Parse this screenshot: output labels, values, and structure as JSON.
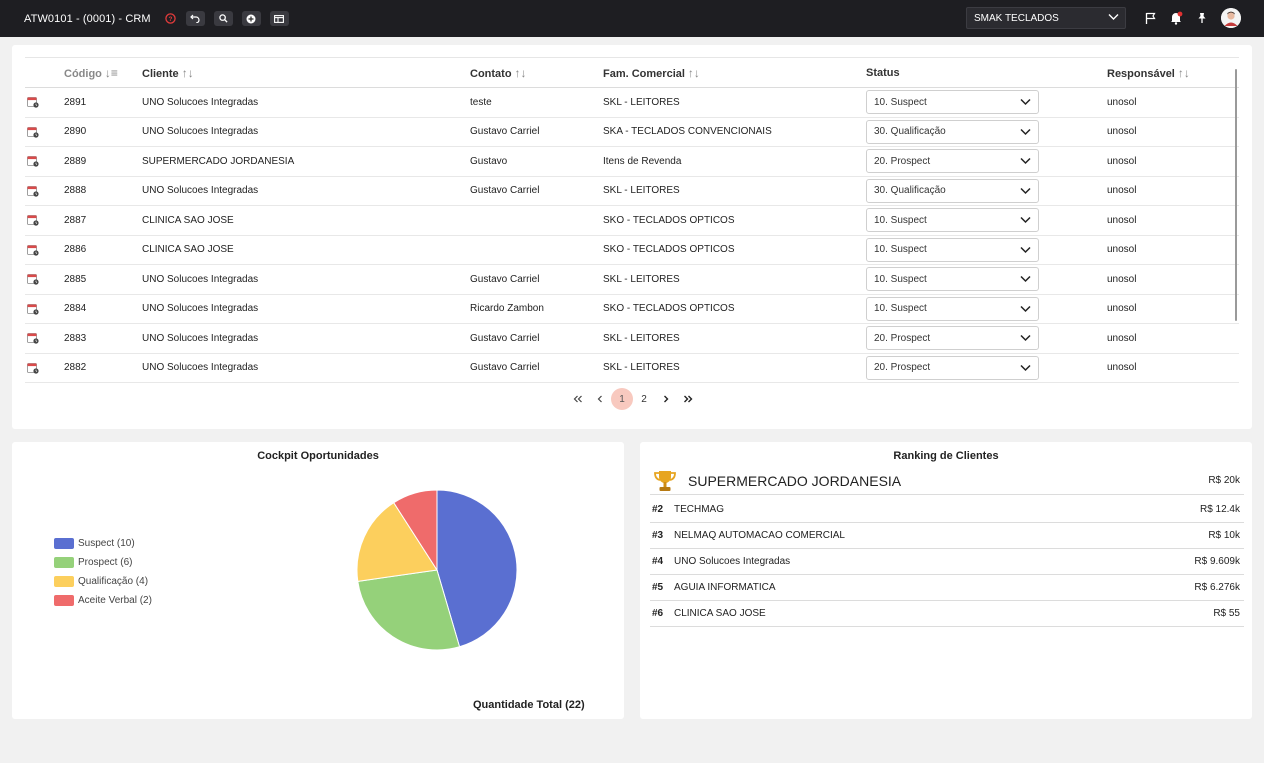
{
  "app": {
    "title": "ATW0101 - (0001) - CRM",
    "company": "SMAK TECLADOS"
  },
  "table": {
    "headers": {
      "codigo": "Código",
      "cliente": "Cliente",
      "contato": "Contato",
      "familia": "Fam. Comercial",
      "status": "Status",
      "responsavel": "Responsável"
    },
    "rows": [
      {
        "codigo": "2891",
        "cliente": "UNO Solucoes Integradas",
        "contato": "teste",
        "familia": "SKL - LEITORES",
        "status": "10. Suspect",
        "responsavel": "unosol"
      },
      {
        "codigo": "2890",
        "cliente": "UNO Solucoes Integradas",
        "contato": "Gustavo Carriel",
        "familia": "SKA - TECLADOS CONVENCIONAIS",
        "status": "30. Qualificação",
        "responsavel": "unosol"
      },
      {
        "codigo": "2889",
        "cliente": "SUPERMERCADO JORDANESIA",
        "contato": "Gustavo",
        "familia": "Itens de Revenda",
        "status": "20. Prospect",
        "responsavel": "unosol"
      },
      {
        "codigo": "2888",
        "cliente": "UNO Solucoes Integradas",
        "contato": "Gustavo Carriel",
        "familia": "SKL - LEITORES",
        "status": "30. Qualificação",
        "responsavel": "unosol"
      },
      {
        "codigo": "2887",
        "cliente": "CLINICA SAO JOSE",
        "contato": "",
        "familia": "SKO - TECLADOS OPTICOS",
        "status": "10. Suspect",
        "responsavel": "unosol"
      },
      {
        "codigo": "2886",
        "cliente": "CLINICA SAO JOSE",
        "contato": "",
        "familia": "SKO - TECLADOS OPTICOS",
        "status": "10. Suspect",
        "responsavel": "unosol"
      },
      {
        "codigo": "2885",
        "cliente": "UNO Solucoes Integradas",
        "contato": "Gustavo Carriel",
        "familia": "SKL - LEITORES",
        "status": "10. Suspect",
        "responsavel": "unosol"
      },
      {
        "codigo": "2884",
        "cliente": "UNO Solucoes Integradas",
        "contato": "Ricardo Zambon",
        "familia": "SKO - TECLADOS OPTICOS",
        "status": "10. Suspect",
        "responsavel": "unosol"
      },
      {
        "codigo": "2883",
        "cliente": "UNO Solucoes Integradas",
        "contato": "Gustavo Carriel",
        "familia": "SKL - LEITORES",
        "status": "20. Prospect",
        "responsavel": "unosol"
      },
      {
        "codigo": "2882",
        "cliente": "UNO Solucoes Integradas",
        "contato": "Gustavo Carriel",
        "familia": "SKL - LEITORES",
        "status": "20. Prospect",
        "responsavel": "unosol"
      }
    ]
  },
  "pagination": {
    "pages": [
      "1",
      "2"
    ],
    "current": "1"
  },
  "cockpit": {
    "title": "Cockpit Oportunidades",
    "total_label": "Quantidade Total (22)",
    "chart_data": {
      "type": "pie",
      "labels": [
        "Suspect (10)",
        "Prospect (6)",
        "Qualificação (4)",
        "Aceite Verbal (2)"
      ],
      "values": [
        10,
        6,
        4,
        2
      ],
      "colors": [
        "#5a6fd1",
        "#95d17a",
        "#fccf5d",
        "#ef6b6b"
      ],
      "legend": "left"
    }
  },
  "ranking": {
    "title": "Ranking de Clientes",
    "top": {
      "name": "SUPERMERCADO JORDANESIA",
      "value": "R$ 20k"
    },
    "items": [
      {
        "pos": "#2",
        "name": "TECHMAG",
        "value": "R$ 12.4k"
      },
      {
        "pos": "#3",
        "name": "NELMAQ AUTOMACAO COMERCIAL",
        "value": "R$ 10k"
      },
      {
        "pos": "#4",
        "name": "UNO Solucoes Integradas",
        "value": "R$ 9.609k"
      },
      {
        "pos": "#5",
        "name": "AGUIA INFORMATICA",
        "value": "R$ 6.276k"
      },
      {
        "pos": "#6",
        "name": "CLINICA SAO JOSE",
        "value": "R$ 55"
      }
    ]
  }
}
